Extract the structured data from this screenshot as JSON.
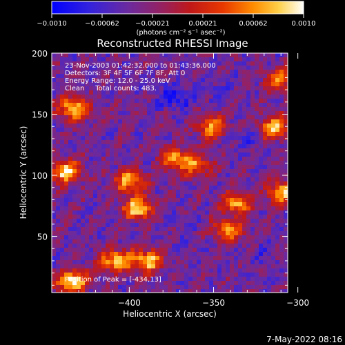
{
  "chart_data": {
    "type": "heatmap",
    "title": "Reconstructed RHESSI Image",
    "xlabel": "Heliocentric X (arcsec)",
    "ylabel": "Heliocentric Y (arcsec)",
    "xlim": [
      -446,
      -306
    ],
    "ylim": [
      4,
      200
    ],
    "x_ticks": [
      -400,
      -350,
      -300
    ],
    "y_ticks": [
      50,
      100,
      150,
      200
    ],
    "x_tick_labels": [
      "−400",
      "−350",
      "−300"
    ],
    "y_tick_labels": [
      "50",
      "100",
      "150",
      "200"
    ],
    "colorbar": {
      "range": [
        -0.001,
        0.001
      ],
      "tick_labels": [
        "−0.0010",
        "−0.00062",
        "−0.00021",
        "0.00021",
        "0.00062",
        "0.0010"
      ],
      "unit_label": "(photons cm⁻² s⁻¹ asec⁻²)",
      "colors": [
        "#0000ff",
        "#4a22c8",
        "#7a2a8a",
        "#b81818",
        "#e33000",
        "#ff8a00",
        "#ffd040",
        "#ffffff"
      ]
    },
    "annotations": [
      "23-Nov-2003 01:42:32.000 to 01:43:36.000",
      "Detectors: 3F 4F 5F 6F 7F 8F, Att 0",
      "Energy Range: 12.0 - 25.0 keV",
      "Clean     Total counts: 483.",
      "Position of Peak = [-434,13]"
    ],
    "peak_position": [
      -434,
      13
    ],
    "bright_sources": [
      {
        "x": -434,
        "y": 13,
        "level": 1.0
      },
      {
        "x": -438,
        "y": 103,
        "level": 0.9
      },
      {
        "x": -433,
        "y": 155,
        "level": 0.85
      },
      {
        "x": -395,
        "y": 73,
        "level": 0.9
      },
      {
        "x": -400,
        "y": 95,
        "level": 0.75
      },
      {
        "x": -408,
        "y": 30,
        "level": 0.85
      },
      {
        "x": -389,
        "y": 30,
        "level": 0.8
      },
      {
        "x": -314,
        "y": 139,
        "level": 0.75
      },
      {
        "x": -309,
        "y": 86,
        "level": 0.8
      },
      {
        "x": -336,
        "y": 77,
        "level": 0.7
      },
      {
        "x": -341,
        "y": 55,
        "level": 0.65
      },
      {
        "x": -351,
        "y": 139,
        "level": 0.6
      },
      {
        "x": -311,
        "y": 178,
        "level": 0.55
      },
      {
        "x": -373,
        "y": 114,
        "level": 0.55
      },
      {
        "x": -360,
        "y": 108,
        "level": 0.5
      }
    ],
    "dim_regions": [
      {
        "x": -373,
        "y": 164,
        "level": -0.9
      },
      {
        "x": -349,
        "y": 168,
        "level": -0.6
      },
      {
        "x": -333,
        "y": 130,
        "level": -0.6
      },
      {
        "x": -368,
        "y": 51,
        "level": -0.5
      },
      {
        "x": -322,
        "y": 37,
        "level": -0.5
      }
    ]
  },
  "footer": {
    "date": "7-May-2022 08:16"
  }
}
